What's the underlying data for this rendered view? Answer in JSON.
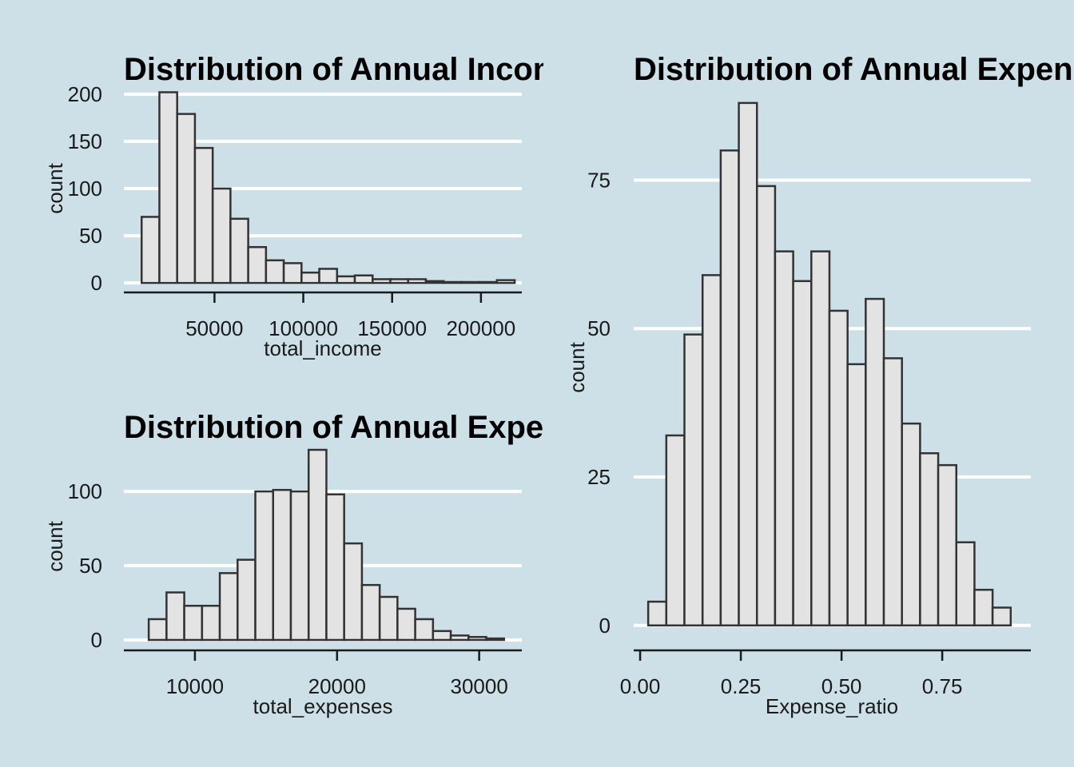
{
  "chart_data": [
    {
      "type": "bar",
      "title": "Distribution of Annual Income",
      "xlabel": "total_income",
      "ylabel": "count",
      "xlim": [
        -1000,
        223000
      ],
      "ylim": [
        -10,
        210
      ],
      "x_ticks": [
        50000,
        100000,
        150000,
        200000
      ],
      "x_tick_labels": [
        "50000",
        "100000",
        "150000",
        "200000"
      ],
      "y_ticks": [
        0,
        50,
        100,
        150,
        200
      ],
      "y_tick_labels": [
        "0",
        "50",
        "100",
        "150",
        "200"
      ],
      "bin_width": 10000,
      "bins_start": [
        9000,
        19000,
        29000,
        39000,
        49000,
        59000,
        69000,
        79000,
        89000,
        99000,
        109000,
        119000,
        129000,
        139000,
        149000,
        159000,
        169000,
        179000,
        189000,
        199000,
        209000
      ],
      "values": [
        70,
        202,
        179,
        143,
        100,
        68,
        38,
        24,
        21,
        11,
        15,
        7,
        8,
        4,
        4,
        4,
        2,
        1,
        1,
        1,
        3
      ],
      "grid": true
    },
    {
      "type": "bar",
      "title": "Distribution of Annual Expenses",
      "xlabel": "total_expenses",
      "ylabel": "count",
      "xlim": [
        5000,
        33000
      ],
      "ylim": [
        -7,
        135
      ],
      "x_ticks": [
        10000,
        20000,
        30000
      ],
      "x_tick_labels": [
        "10000",
        "20000",
        "30000"
      ],
      "y_ticks": [
        0,
        50,
        100
      ],
      "y_tick_labels": [
        "0",
        "50",
        "100"
      ],
      "bin_width": 1250,
      "bins_start": [
        6750,
        8000,
        9250,
        10500,
        11750,
        13000,
        14250,
        15500,
        16750,
        18000,
        19250,
        20500,
        21750,
        23000,
        24250,
        25500,
        26750,
        28000,
        29250,
        30500
      ],
      "values": [
        14,
        32,
        23,
        23,
        45,
        54,
        100,
        101,
        100,
        128,
        98,
        65,
        37,
        29,
        21,
        14,
        6,
        3,
        2,
        1
      ],
      "grid": true
    },
    {
      "type": "bar",
      "title": "Distribution of Annual Expense Ratio",
      "xlabel": "Expense_ratio",
      "ylabel": "count",
      "xlim": [
        -0.016,
        0.97
      ],
      "ylim": [
        -4.2,
        90
      ],
      "x_ticks": [
        0,
        0.25,
        0.5,
        0.75
      ],
      "x_tick_labels": [
        "0.00",
        "0.25",
        "0.50",
        "0.75"
      ],
      "y_ticks": [
        0,
        25,
        50,
        75
      ],
      "y_tick_labels": [
        "0",
        "25",
        "50",
        "75"
      ],
      "bin_width": 0.045,
      "bins_start": [
        0.02,
        0.065,
        0.11,
        0.155,
        0.2,
        0.245,
        0.29,
        0.335,
        0.38,
        0.425,
        0.47,
        0.515,
        0.56,
        0.605,
        0.65,
        0.695,
        0.74,
        0.785,
        0.83,
        0.875
      ],
      "values": [
        4,
        32,
        49,
        59,
        80,
        88,
        74,
        63,
        58,
        63,
        53,
        44,
        55,
        45,
        34,
        29,
        27,
        14,
        6,
        3
      ],
      "grid": true
    }
  ]
}
